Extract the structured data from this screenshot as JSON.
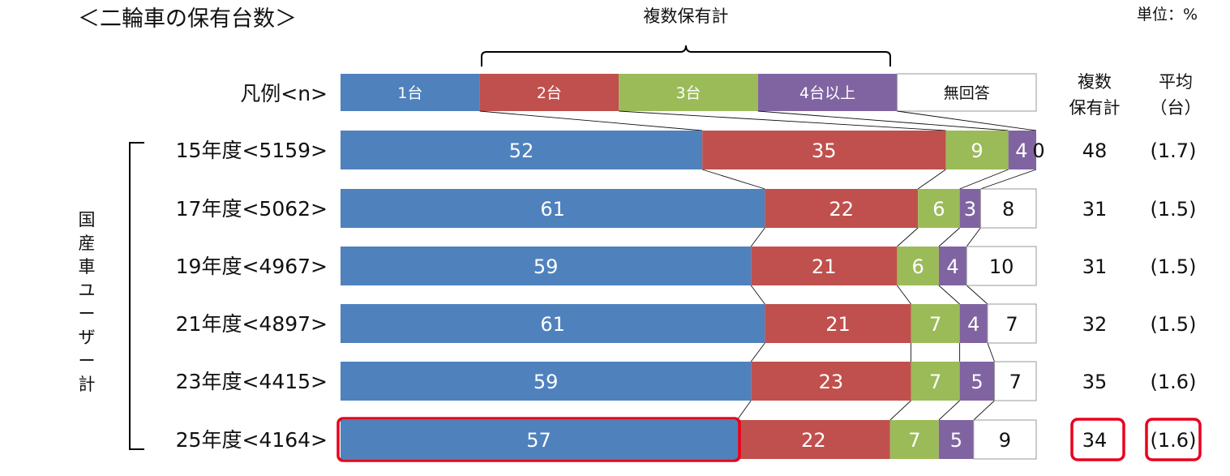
{
  "header": {
    "title": "＜二輪車の保有台数＞",
    "unit": "単位：%",
    "bracket_label": "複数保有計"
  },
  "legend": {
    "label": "凡例<n>"
  },
  "side_label": "国産車ユーザー計",
  "columns": {
    "multi": [
      "複数",
      "保有計"
    ],
    "avg": [
      "平均",
      "（台）"
    ]
  },
  "colors": {
    "one": "#4f81bd",
    "two": "#c0504d",
    "three": "#9bbb59",
    "four_plus": "#8064a2",
    "no_answer": "#ffffff",
    "highlight": "#e8001c"
  },
  "chart_data": {
    "type": "bar",
    "orientation": "horizontal",
    "stacked": true,
    "xlim": [
      0,
      100
    ],
    "categories": [
      "15年度<5159>",
      "17年度<5062>",
      "19年度<4967>",
      "21年度<4897>",
      "23年度<4415>",
      "25年度<4164>"
    ],
    "series": [
      {
        "name": "1台",
        "values": [
          52,
          61,
          59,
          61,
          59,
          57
        ]
      },
      {
        "name": "2台",
        "values": [
          35,
          22,
          21,
          21,
          23,
          22
        ]
      },
      {
        "name": "3台",
        "values": [
          9,
          6,
          6,
          7,
          7,
          7
        ]
      },
      {
        "name": "4台以上",
        "values": [
          4,
          3,
          4,
          4,
          5,
          5
        ]
      },
      {
        "name": "無回答",
        "values": [
          0,
          8,
          10,
          7,
          7,
          9
        ]
      }
    ],
    "multi_total": [
      48,
      31,
      31,
      32,
      35,
      34
    ],
    "average": [
      "(1.7)",
      "(1.5)",
      "(1.5)",
      "(1.5)",
      "(1.6)",
      "(1.6)"
    ]
  }
}
